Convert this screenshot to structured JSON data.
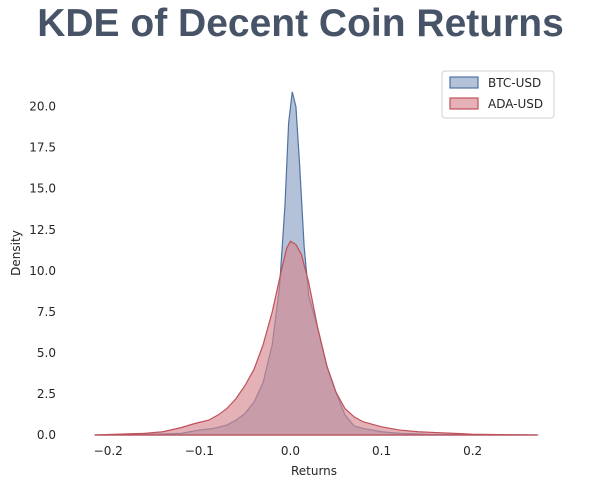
{
  "chart_data": {
    "type": "area",
    "title": "KDE of Decent Coin Returns",
    "xlabel": "Returns",
    "ylabel": "Density",
    "xlim": [
      -0.22,
      0.275
    ],
    "ylim": [
      0,
      21.5
    ],
    "xticks": [
      -0.2,
      -0.1,
      0.0,
      0.1,
      0.2
    ],
    "xtick_labels": [
      "−0.2",
      "−0.1",
      "0.0",
      "0.1",
      "0.2"
    ],
    "yticks": [
      0,
      2.5,
      5,
      7.5,
      10,
      12.5,
      15,
      17.5,
      20
    ],
    "ytick_labels": [
      "0.0",
      "2.5",
      "5.0",
      "7.5",
      "10.0",
      "12.5",
      "15.0",
      "17.5",
      "20.0"
    ],
    "grid": false,
    "legend_position": "top-right",
    "series": [
      {
        "name": "BTC-USD",
        "fill": "#8aa1c3",
        "stroke": "#4f72a0",
        "points": [
          [
            -0.215,
            0
          ],
          [
            -0.18,
            0.02
          ],
          [
            -0.15,
            0.05
          ],
          [
            -0.12,
            0.1
          ],
          [
            -0.1,
            0.3
          ],
          [
            -0.085,
            0.4
          ],
          [
            -0.07,
            0.6
          ],
          [
            -0.06,
            0.9
          ],
          [
            -0.05,
            1.3
          ],
          [
            -0.04,
            2.0
          ],
          [
            -0.03,
            3.2
          ],
          [
            -0.02,
            5.5
          ],
          [
            -0.012,
            9.0
          ],
          [
            -0.006,
            14.0
          ],
          [
            -0.002,
            19.0
          ],
          [
            0.002,
            20.9
          ],
          [
            0.006,
            20.0
          ],
          [
            0.01,
            16.5
          ],
          [
            0.015,
            11.5
          ],
          [
            0.02,
            8.5
          ],
          [
            0.03,
            6.5
          ],
          [
            0.04,
            4.2
          ],
          [
            0.05,
            2.6
          ],
          [
            0.06,
            1.2
          ],
          [
            0.07,
            0.55
          ],
          [
            0.08,
            0.4
          ],
          [
            0.09,
            0.3
          ],
          [
            0.1,
            0.2
          ],
          [
            0.12,
            0.1
          ],
          [
            0.15,
            0.04
          ],
          [
            0.2,
            0.02
          ],
          [
            0.27,
            0
          ]
        ]
      },
      {
        "name": "ADA-USD",
        "fill": "#d4878f",
        "stroke": "#c0505a",
        "points": [
          [
            -0.215,
            0
          ],
          [
            -0.19,
            0.05
          ],
          [
            -0.16,
            0.1
          ],
          [
            -0.14,
            0.2
          ],
          [
            -0.12,
            0.45
          ],
          [
            -0.105,
            0.7
          ],
          [
            -0.09,
            0.9
          ],
          [
            -0.08,
            1.2
          ],
          [
            -0.07,
            1.6
          ],
          [
            -0.06,
            2.2
          ],
          [
            -0.05,
            3.0
          ],
          [
            -0.04,
            4.0
          ],
          [
            -0.03,
            5.5
          ],
          [
            -0.02,
            7.5
          ],
          [
            -0.01,
            10.0
          ],
          [
            -0.004,
            11.4
          ],
          [
            0.0,
            11.8
          ],
          [
            0.006,
            11.6
          ],
          [
            0.012,
            11.0
          ],
          [
            0.02,
            9.3
          ],
          [
            0.03,
            6.5
          ],
          [
            0.04,
            4.2
          ],
          [
            0.05,
            2.6
          ],
          [
            0.06,
            1.6
          ],
          [
            0.07,
            1.1
          ],
          [
            0.08,
            0.8
          ],
          [
            0.09,
            0.65
          ],
          [
            0.1,
            0.5
          ],
          [
            0.12,
            0.3
          ],
          [
            0.14,
            0.2
          ],
          [
            0.16,
            0.15
          ],
          [
            0.18,
            0.1
          ],
          [
            0.2,
            0.05
          ],
          [
            0.24,
            0.02
          ],
          [
            0.272,
            0
          ]
        ]
      }
    ]
  }
}
